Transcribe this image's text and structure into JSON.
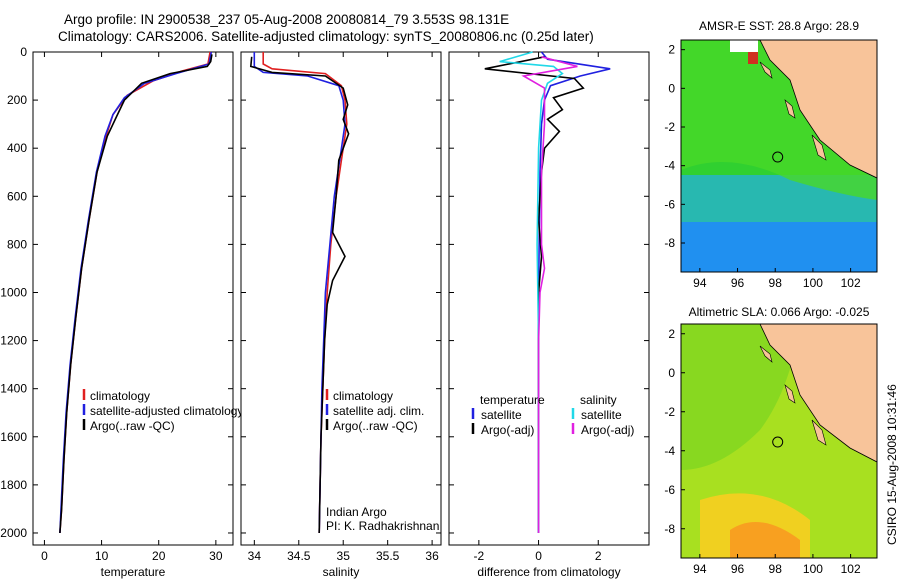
{
  "title": {
    "line1": "Argo profile: IN 2900538_237 05-Aug-2008 20080814_79 3.553S 98.131E",
    "line2": "Climatology: CARS2006. Satellite-adjusted climatology: synTS_20080806.nc (0.25d later)"
  },
  "side_label": "CSIRO 15-Aug-2008 10:31:46",
  "colors": {
    "clim": "#e02020",
    "sat": "#2020e0",
    "argo": "#000000",
    "sat_s": "#20d8e8",
    "argo_s": "#e020e0",
    "land": "#f8c49a"
  },
  "chart_data": [
    {
      "type": "line",
      "panel": "temperature",
      "xlabel": "temperature",
      "ylabel": "",
      "xlim": [
        -2,
        33
      ],
      "ylim": [
        0,
        2050
      ],
      "y_reversed": true,
      "xticks": [
        0,
        10,
        20,
        30
      ],
      "yticks": [
        0,
        200,
        400,
        600,
        800,
        1000,
        1200,
        1400,
        1600,
        1800,
        2000
      ],
      "legend": {
        "placement": "lower-middle",
        "entries": [
          "climatology",
          "satellite-adjusted climatology",
          "Argo(..raw -QC)"
        ]
      },
      "series": [
        {
          "key": "clim",
          "values": [
            [
              29.0,
              0
            ],
            [
              28.6,
              50
            ],
            [
              24,
              80
            ],
            [
              19,
              120
            ],
            [
              14.5,
              180
            ],
            [
              12,
              260
            ],
            [
              10.8,
              350
            ],
            [
              9.2,
              500
            ],
            [
              7.8,
              700
            ],
            [
              6.5,
              900
            ],
            [
              5.5,
              1100
            ],
            [
              4.6,
              1300
            ],
            [
              3.9,
              1500
            ],
            [
              3.4,
              1700
            ],
            [
              3.0,
              1900
            ],
            [
              2.7,
              2000
            ]
          ]
        },
        {
          "key": "sat",
          "values": [
            [
              29.2,
              0
            ],
            [
              28.8,
              50
            ],
            [
              23,
              90
            ],
            [
              17.5,
              130
            ],
            [
              14,
              190
            ],
            [
              12,
              260
            ],
            [
              10.6,
              350
            ],
            [
              9.1,
              500
            ],
            [
              7.7,
              700
            ],
            [
              6.4,
              900
            ],
            [
              5.4,
              1100
            ],
            [
              4.5,
              1300
            ],
            [
              3.8,
              1500
            ],
            [
              3.3,
              1700
            ],
            [
              2.9,
              1900
            ],
            [
              2.7,
              2000
            ]
          ]
        },
        {
          "key": "argo",
          "values": [
            [
              29.3,
              10
            ],
            [
              29.1,
              40
            ],
            [
              28.5,
              60
            ],
            [
              22,
              90
            ],
            [
              17,
              130
            ],
            [
              14,
              200
            ],
            [
              12.6,
              270
            ],
            [
              11,
              350
            ],
            [
              9.2,
              500
            ],
            [
              7.8,
              700
            ],
            [
              6.5,
              900
            ],
            [
              5.5,
              1100
            ],
            [
              4.6,
              1300
            ],
            [
              3.9,
              1500
            ],
            [
              3.4,
              1700
            ],
            [
              3.0,
              1900
            ],
            [
              2.7,
              2000
            ]
          ]
        }
      ]
    },
    {
      "type": "line",
      "panel": "salinity",
      "xlabel": "salinity",
      "ylabel": "",
      "xlim": [
        33.85,
        36.1
      ],
      "ylim": [
        0,
        2050
      ],
      "y_reversed": true,
      "xticks": [
        34,
        34.5,
        35,
        35.5,
        36
      ],
      "yticks": [
        0,
        200,
        400,
        600,
        800,
        1000,
        1200,
        1400,
        1600,
        1800,
        2000
      ],
      "legend": {
        "placement": "lower-middle",
        "entries": [
          "climatology",
          "satellite adj. clim.",
          "Argo(..raw -QC)"
        ]
      },
      "annotations": [
        "Indian Argo",
        "PI: K. Radhakrishnan"
      ],
      "series": [
        {
          "key": "clim",
          "values": [
            [
              34.1,
              0
            ],
            [
              34.1,
              50
            ],
            [
              34.2,
              70
            ],
            [
              34.8,
              90
            ],
            [
              34.98,
              140
            ],
            [
              35.02,
              200
            ],
            [
              35.04,
              300
            ],
            [
              34.98,
              450
            ],
            [
              34.92,
              600
            ],
            [
              34.86,
              800
            ],
            [
              34.82,
              1000
            ],
            [
              34.79,
              1200
            ],
            [
              34.77,
              1400
            ],
            [
              34.75,
              1600
            ],
            [
              34.74,
              1800
            ],
            [
              34.73,
              2000
            ]
          ]
        },
        {
          "key": "sat",
          "values": [
            [
              34.0,
              0
            ],
            [
              34.0,
              60
            ],
            [
              34.1,
              85
            ],
            [
              34.6,
              100
            ],
            [
              34.95,
              140
            ],
            [
              35.0,
              200
            ],
            [
              35.02,
              300
            ],
            [
              34.96,
              450
            ],
            [
              34.9,
              600
            ],
            [
              34.85,
              800
            ],
            [
              34.8,
              1000
            ],
            [
              34.78,
              1200
            ],
            [
              34.76,
              1400
            ],
            [
              34.75,
              1600
            ],
            [
              34.74,
              1800
            ],
            [
              34.73,
              2000
            ]
          ]
        },
        {
          "key": "argo",
          "values": [
            [
              33.97,
              20
            ],
            [
              33.96,
              60
            ],
            [
              34.2,
              85
            ],
            [
              34.8,
              100
            ],
            [
              35.0,
              150
            ],
            [
              35.05,
              220
            ],
            [
              35.0,
              280
            ],
            [
              35.06,
              340
            ],
            [
              34.95,
              450
            ],
            [
              34.92,
              600
            ],
            [
              34.88,
              750
            ],
            [
              35.02,
              850
            ],
            [
              34.88,
              950
            ],
            [
              34.82,
              1050
            ],
            [
              34.79,
              1200
            ],
            [
              34.77,
              1400
            ],
            [
              34.75,
              1600
            ],
            [
              34.74,
              1800
            ],
            [
              34.73,
              2000
            ]
          ]
        }
      ]
    },
    {
      "type": "line",
      "panel": "difference",
      "xlabel": "difference from climatology",
      "ylabel": "",
      "xlim": [
        -3,
        3.7
      ],
      "ylim": [
        0,
        2050
      ],
      "y_reversed": true,
      "xticks": [
        -2,
        0,
        2
      ],
      "yticks": [
        0,
        200,
        400,
        600,
        800,
        1000,
        1200,
        1400,
        1600,
        1800,
        2000
      ],
      "legend": {
        "placement": "lower-middle",
        "entries": [
          "temperature",
          "satellite",
          "Argo(-adj)",
          "salinity",
          "satellite",
          "Argo(-adj)"
        ]
      },
      "series": [
        {
          "key": "sat",
          "values": [
            [
              0.1,
              0
            ],
            [
              0.3,
              30
            ],
            [
              2.4,
              70
            ],
            [
              1.4,
              100
            ],
            [
              0.4,
              140
            ],
            [
              0.2,
              200
            ],
            [
              0.1,
              300
            ],
            [
              0.05,
              500
            ],
            [
              0,
              1000
            ],
            [
              0,
              2000
            ]
          ]
        },
        {
          "key": "argo",
          "values": [
            [
              0.2,
              20
            ],
            [
              -1.8,
              70
            ],
            [
              1.2,
              110
            ],
            [
              1.5,
              150
            ],
            [
              0.5,
              190
            ],
            [
              0.8,
              240
            ],
            [
              0.3,
              280
            ],
            [
              0.7,
              330
            ],
            [
              0.2,
              400
            ],
            [
              0.1,
              500
            ],
            [
              0,
              700
            ],
            [
              0.1,
              850
            ],
            [
              0,
              1000
            ],
            [
              0,
              1400
            ],
            [
              0,
              2000
            ]
          ]
        },
        {
          "key": "sat_s",
          "values": [
            [
              -0.2,
              0
            ],
            [
              -1.3,
              40
            ],
            [
              0.5,
              60
            ],
            [
              0.8,
              90
            ],
            [
              0.3,
              130
            ],
            [
              0.1,
              200
            ],
            [
              0,
              400
            ],
            [
              -0.05,
              800
            ],
            [
              0,
              1200
            ],
            [
              0,
              2000
            ]
          ]
        },
        {
          "key": "argo_s",
          "values": [
            [
              0.1,
              20
            ],
            [
              1.3,
              60
            ],
            [
              0.4,
              80
            ],
            [
              -0.5,
              100
            ],
            [
              0.2,
              150
            ],
            [
              0.2,
              300
            ],
            [
              0.1,
              500
            ],
            [
              0.1,
              800
            ],
            [
              0.2,
              900
            ],
            [
              0.05,
              1000
            ],
            [
              0,
              1200
            ],
            [
              0,
              2000
            ]
          ]
        }
      ]
    },
    {
      "type": "heatmap",
      "panel": "map-sst",
      "title": "AMSR-E SST: 28.8 Argo: 28.9",
      "xlim": [
        93,
        103.4
      ],
      "ylim": [
        -9.5,
        2.5
      ],
      "xticks": [
        94,
        96,
        98,
        100,
        102
      ],
      "yticks": [
        2,
        0,
        -2,
        -4,
        -6,
        -8
      ],
      "argo_position": [
        98.131,
        -3.553
      ]
    },
    {
      "type": "heatmap",
      "panel": "map-sla",
      "title": "Altimetric SLA: 0.066 Argo: -0.025",
      "xlim": [
        93,
        103.4
      ],
      "ylim": [
        -9.5,
        2.5
      ],
      "xticks": [
        94,
        96,
        98,
        100,
        102
      ],
      "yticks": [
        2,
        0,
        -2,
        -4,
        -6,
        -8
      ],
      "argo_position": [
        98.131,
        -3.553
      ]
    }
  ]
}
